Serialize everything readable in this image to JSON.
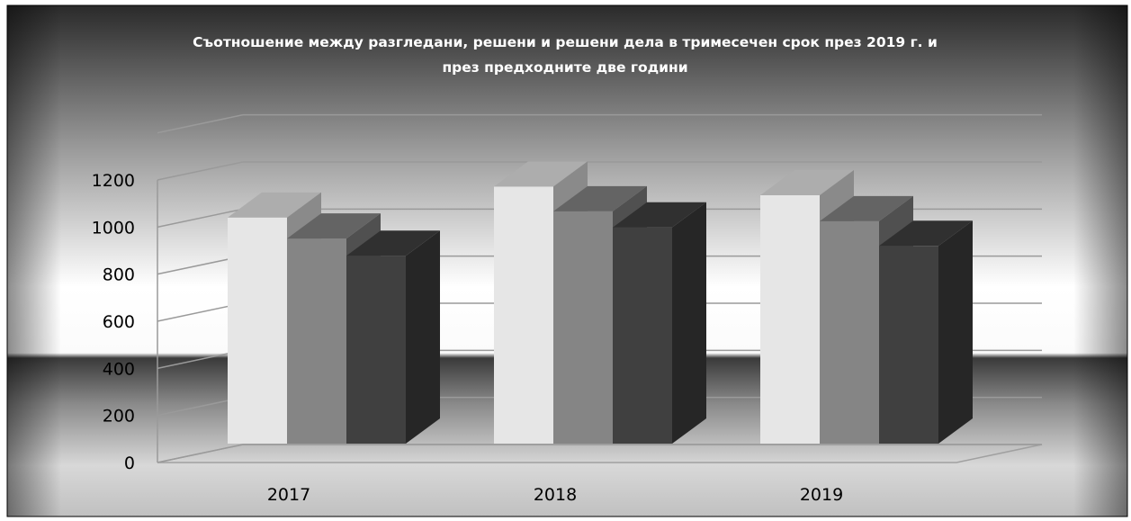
{
  "chart_data": {
    "type": "bar",
    "title_lines": [
      "Съотношение между  разгледани, решени и решени дела в тримесечен срок през 2019 г. и",
      "през предходните две години"
    ],
    "categories": [
      "2017",
      "2018",
      "2019"
    ],
    "series": [
      {
        "values": [
          915,
          1040,
          1005
        ],
        "color": "#e6e6e6"
      },
      {
        "values": [
          830,
          940,
          900
        ],
        "color": "#858585"
      },
      {
        "values": [
          760,
          875,
          800
        ],
        "color": "#404040"
      }
    ],
    "y_ticks": [
      "0",
      "200",
      "400",
      "600",
      "800",
      "1000",
      "1200"
    ],
    "ylim": [
      0,
      1200
    ],
    "grid": true,
    "view": "3d-column"
  }
}
